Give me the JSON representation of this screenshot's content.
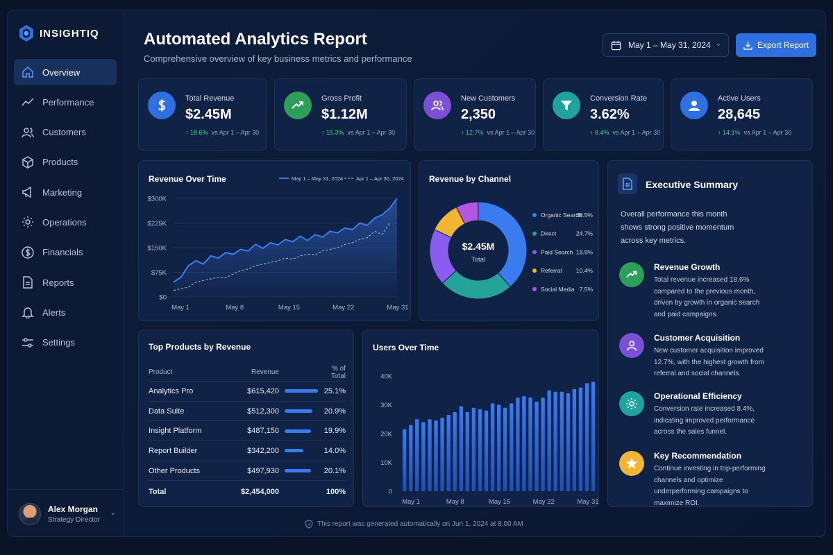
{
  "brand": {
    "name": "INSIGHTIQ"
  },
  "sidebar": {
    "items": [
      {
        "label": "Overview",
        "icon": "home-icon",
        "active": true
      },
      {
        "label": "Performance",
        "icon": "trend-icon"
      },
      {
        "label": "Customers",
        "icon": "users-icon"
      },
      {
        "label": "Products",
        "icon": "box-icon"
      },
      {
        "label": "Marketing",
        "icon": "megaphone-icon"
      },
      {
        "label": "Operations",
        "icon": "gear-icon"
      },
      {
        "label": "Financials",
        "icon": "dollar-icon"
      },
      {
        "label": "Reports",
        "icon": "document-icon"
      },
      {
        "label": "Alerts",
        "icon": "bell-icon"
      },
      {
        "label": "Settings",
        "icon": "sliders-icon"
      }
    ]
  },
  "user": {
    "name": "Alex Morgan",
    "role": "Strategy Director"
  },
  "header": {
    "title": "Automated Analytics Report",
    "subtitle": "Comprehensive overview of key business metrics and performance",
    "date_range": "May 1 – May 31, 2024",
    "export_label": "Export Report"
  },
  "kpis": [
    {
      "label": "Total Revenue",
      "value": "$2.45M",
      "change": "18.6%",
      "compare": "vs Apr 1 – Apr 30",
      "color": "#2f6fe0",
      "icon": "dollar-icon"
    },
    {
      "label": "Gross Profit",
      "value": "$1.12M",
      "change": "15.3%",
      "compare": "vs Apr 1 – Apr 30",
      "color": "#2e9e5b",
      "icon": "trend-up-icon"
    },
    {
      "label": "New Customers",
      "value": "2,350",
      "change": "12.7%",
      "compare": "vs Apr 1 – Apr 30",
      "color": "#7b4fd6",
      "icon": "users-icon"
    },
    {
      "label": "Conversion Rate",
      "value": "3.62%",
      "change": "8.4%",
      "compare": "vs Apr 1 – Apr 30",
      "color": "#1fa3a0",
      "icon": "funnel-icon"
    },
    {
      "label": "Active Users",
      "value": "28,645",
      "change": "14.1%",
      "compare": "vs Apr 1 – Apr 30",
      "color": "#2f6fe0",
      "icon": "user-icon"
    }
  ],
  "chart_data": [
    {
      "type": "line",
      "title": "Revenue Over Time",
      "x_ticks": [
        "May 1",
        "May 8",
        "May 15",
        "May 22",
        "May 31"
      ],
      "y_ticks": [
        "$0",
        "$75K",
        "$150K",
        "$225K",
        "$300K"
      ],
      "ylim": [
        0,
        300000
      ],
      "legend": "top-right",
      "series": [
        {
          "name": "May 1 – May 31, 2024",
          "color": "#3b7bf0",
          "style": "solid",
          "values": [
            45000,
            60000,
            95000,
            110000,
            100000,
            125000,
            118000,
            135000,
            130000,
            145000,
            140000,
            160000,
            148000,
            165000,
            158000,
            175000,
            168000,
            185000,
            172000,
            190000,
            182000,
            200000,
            195000,
            210000,
            205000,
            225000,
            218000,
            240000,
            250000,
            270000,
            300000
          ]
        },
        {
          "name": "Apr 1 – Apr 30, 2024",
          "color": "#9aa8c4",
          "style": "dashed",
          "values": [
            20000,
            25000,
            30000,
            45000,
            50000,
            55000,
            60000,
            58000,
            70000,
            80000,
            85000,
            95000,
            100000,
            105000,
            110000,
            118000,
            115000,
            125000,
            130000,
            128000,
            140000,
            145000,
            150000,
            160000,
            165000,
            175000,
            180000,
            200000,
            190000,
            225000
          ]
        }
      ]
    },
    {
      "type": "pie",
      "title": "Revenue by Channel",
      "center_value": "$2.45M",
      "center_label": "Total",
      "legend": "right",
      "slices": [
        {
          "label": "Organic Search",
          "value": 38.5,
          "display": "38.5%",
          "color": "#3b7bf0"
        },
        {
          "label": "Direct",
          "value": 24.7,
          "display": "24.7%",
          "color": "#24a39b"
        },
        {
          "label": "Paid Search",
          "value": 18.9,
          "display": "18.9%",
          "color": "#8a5cf0"
        },
        {
          "label": "Referral",
          "value": 10.4,
          "display": "10.4%",
          "color": "#f2b534"
        },
        {
          "label": "Social Media",
          "value": 7.5,
          "display": "7.5%",
          "color": "#b456e0"
        }
      ]
    },
    {
      "type": "table",
      "title": "Top Products by Revenue",
      "columns": [
        "Product",
        "Revenue",
        "% of Total"
      ],
      "rows": [
        {
          "product": "Analytics Pro",
          "revenue": "$615,420",
          "pct": "25.1%",
          "share": 25.1
        },
        {
          "product": "Data Suite",
          "revenue": "$512,300",
          "pct": "20.9%",
          "share": 20.9
        },
        {
          "product": "Insight Platform",
          "revenue": "$487,150",
          "pct": "19.9%",
          "share": 19.9
        },
        {
          "product": "Report Builder",
          "revenue": "$342,200",
          "pct": "14.0%",
          "share": 14.0
        },
        {
          "product": "Other Products",
          "revenue": "$497,930",
          "pct": "20.1%",
          "share": 20.1
        }
      ],
      "total": {
        "label": "Total",
        "revenue": "$2,454,000",
        "pct": "100%"
      }
    },
    {
      "type": "bar",
      "title": "Users Over Time",
      "x_ticks": [
        "May 1",
        "May 8",
        "May 15",
        "May 22",
        "May 31"
      ],
      "y_ticks": [
        "0",
        "10K",
        "20K",
        "30K",
        "40K"
      ],
      "ylim": [
        0,
        40000
      ],
      "values": [
        21500,
        23000,
        25000,
        24000,
        25000,
        24500,
        25500,
        26500,
        27500,
        29500,
        27500,
        29000,
        28500,
        28000,
        30500,
        30000,
        29000,
        30500,
        32500,
        33000,
        32500,
        31000,
        32500,
        35000,
        34500,
        34500,
        34000,
        35500,
        36000,
        37500,
        38000
      ]
    }
  ],
  "summary": {
    "title": "Executive Summary",
    "intro": "Overall performance this month shows strong positive momentum across key metrics.",
    "items": [
      {
        "title": "Revenue Growth",
        "text": "Total revenue increased 18.6% compared to the previous month, driven by growth in organic search and paid campaigns.",
        "color": "#2e9e5b",
        "icon": "trend-up-icon"
      },
      {
        "title": "Customer Acquisition",
        "text": "New customer acquisition improved 12.7%, with the highest growth from referral and social channels.",
        "color": "#7b4fd6",
        "icon": "user-icon"
      },
      {
        "title": "Operational Efficiency",
        "text": "Conversion rate increased 8.4%, indicating improved performance across the sales funnel.",
        "color": "#1fa3a0",
        "icon": "gear-icon"
      },
      {
        "title": "Key Recommendation",
        "text": "Continue investing in top-performing channels and optimize underperforming campaigns to maximize ROI.",
        "color": "#f2b534",
        "icon": "star-icon"
      }
    ]
  },
  "footer": {
    "text": "This report was generated automatically on Jun 1, 2024 at 8:00 AM"
  }
}
